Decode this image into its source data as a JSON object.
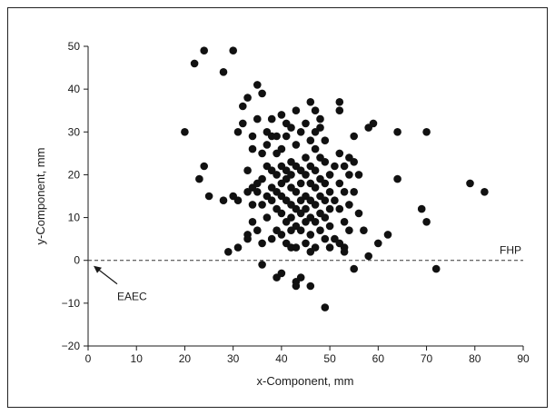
{
  "chart_data": {
    "type": "scatter",
    "title": "",
    "xlabel": "x-Component, mm",
    "ylabel": "y-Component, mm",
    "xlim": [
      0,
      90
    ],
    "ylim": [
      -20,
      50
    ],
    "xticks": [
      0,
      10,
      20,
      30,
      40,
      50,
      60,
      70,
      80,
      90
    ],
    "yticks": [
      -20,
      -10,
      0,
      10,
      20,
      30,
      40,
      50
    ],
    "grid": false,
    "marker_color": "#111111",
    "reference_line": {
      "y": 0,
      "style": "dashed",
      "label": "FHP"
    },
    "annotations": [
      {
        "text": "EAEC",
        "arrow_to": [
          0,
          0
        ]
      }
    ],
    "points": [
      [
        22,
        46
      ],
      [
        24,
        49
      ],
      [
        28,
        44
      ],
      [
        30,
        49
      ],
      [
        20,
        30
      ],
      [
        23,
        19
      ],
      [
        24,
        22
      ],
      [
        25,
        15
      ],
      [
        28,
        14
      ],
      [
        29,
        2
      ],
      [
        30,
        15
      ],
      [
        31,
        3
      ],
      [
        31,
        14
      ],
      [
        31,
        30
      ],
      [
        32,
        32
      ],
      [
        32,
        36
      ],
      [
        33,
        38
      ],
      [
        33,
        6
      ],
      [
        33,
        5
      ],
      [
        33,
        16
      ],
      [
        33,
        21
      ],
      [
        34,
        17
      ],
      [
        34,
        26
      ],
      [
        34,
        29
      ],
      [
        34,
        13
      ],
      [
        34,
        9
      ],
      [
        35,
        41
      ],
      [
        35,
        33
      ],
      [
        35,
        18
      ],
      [
        35,
        16
      ],
      [
        35,
        7
      ],
      [
        36,
        39
      ],
      [
        36,
        4
      ],
      [
        36,
        -1
      ],
      [
        36,
        25
      ],
      [
        36,
        19
      ],
      [
        36,
        13
      ],
      [
        37,
        30
      ],
      [
        37,
        22
      ],
      [
        37,
        15
      ],
      [
        37,
        10
      ],
      [
        37,
        27
      ],
      [
        38,
        29
      ],
      [
        38,
        33
      ],
      [
        38,
        21
      ],
      [
        38,
        17
      ],
      [
        38,
        14
      ],
      [
        38,
        5
      ],
      [
        39,
        -4
      ],
      [
        39,
        20
      ],
      [
        39,
        16
      ],
      [
        39,
        12
      ],
      [
        39,
        7
      ],
      [
        39,
        25
      ],
      [
        39,
        29
      ],
      [
        40,
        -3
      ],
      [
        40,
        22
      ],
      [
        40,
        18
      ],
      [
        40,
        15
      ],
      [
        40,
        11
      ],
      [
        40,
        6
      ],
      [
        40,
        26
      ],
      [
        40,
        34
      ],
      [
        41,
        32
      ],
      [
        41,
        21
      ],
      [
        41,
        19
      ],
      [
        41,
        14
      ],
      [
        41,
        9
      ],
      [
        41,
        4
      ],
      [
        41,
        29
      ],
      [
        42,
        31
      ],
      [
        42,
        23
      ],
      [
        42,
        20
      ],
      [
        42,
        17
      ],
      [
        42,
        13
      ],
      [
        42,
        10
      ],
      [
        42,
        7
      ],
      [
        42,
        3
      ],
      [
        43,
        -5
      ],
      [
        43,
        -6
      ],
      [
        43,
        35
      ],
      [
        43,
        22
      ],
      [
        43,
        16
      ],
      [
        43,
        12
      ],
      [
        43,
        8
      ],
      [
        43,
        3
      ],
      [
        43,
        27
      ],
      [
        44,
        30
      ],
      [
        44,
        21
      ],
      [
        44,
        18
      ],
      [
        44,
        14
      ],
      [
        44,
        11
      ],
      [
        44,
        7
      ],
      [
        44,
        -4
      ],
      [
        45,
        24
      ],
      [
        45,
        20
      ],
      [
        45,
        15
      ],
      [
        45,
        12
      ],
      [
        45,
        9
      ],
      [
        45,
        4
      ],
      [
        45,
        32
      ],
      [
        46,
        37
      ],
      [
        46,
        28
      ],
      [
        46,
        22
      ],
      [
        46,
        18
      ],
      [
        46,
        14
      ],
      [
        46,
        10
      ],
      [
        46,
        6
      ],
      [
        46,
        2
      ],
      [
        46,
        -6
      ],
      [
        47,
        35
      ],
      [
        47,
        26
      ],
      [
        47,
        21
      ],
      [
        47,
        17
      ],
      [
        47,
        13
      ],
      [
        47,
        9
      ],
      [
        47,
        3
      ],
      [
        47,
        30
      ],
      [
        48,
        31
      ],
      [
        48,
        24
      ],
      [
        48,
        19
      ],
      [
        48,
        15
      ],
      [
        48,
        11
      ],
      [
        48,
        7
      ],
      [
        48,
        33
      ],
      [
        49,
        28
      ],
      [
        49,
        23
      ],
      [
        49,
        18
      ],
      [
        49,
        14
      ],
      [
        49,
        10
      ],
      [
        49,
        5
      ],
      [
        49,
        -11
      ],
      [
        50,
        20
      ],
      [
        50,
        16
      ],
      [
        50,
        12
      ],
      [
        50,
        8
      ],
      [
        50,
        3
      ],
      [
        51,
        22
      ],
      [
        51,
        14
      ],
      [
        51,
        5
      ],
      [
        52,
        37
      ],
      [
        52,
        35
      ],
      [
        52,
        25
      ],
      [
        52,
        18
      ],
      [
        52,
        12
      ],
      [
        52,
        4
      ],
      [
        53,
        22
      ],
      [
        53,
        16
      ],
      [
        53,
        9
      ],
      [
        53,
        3
      ],
      [
        53,
        2
      ],
      [
        54,
        24
      ],
      [
        54,
        20
      ],
      [
        54,
        13
      ],
      [
        54,
        7
      ],
      [
        55,
        -2
      ],
      [
        55,
        29
      ],
      [
        55,
        23
      ],
      [
        55,
        16
      ],
      [
        56,
        20
      ],
      [
        56,
        11
      ],
      [
        57,
        7
      ],
      [
        58,
        31
      ],
      [
        58,
        1
      ],
      [
        59,
        32
      ],
      [
        60,
        4
      ],
      [
        62,
        6
      ],
      [
        64,
        30
      ],
      [
        64,
        19
      ],
      [
        69,
        12
      ],
      [
        70,
        30
      ],
      [
        70,
        9
      ],
      [
        72,
        -2
      ],
      [
        79,
        18
      ],
      [
        82,
        16
      ]
    ]
  }
}
